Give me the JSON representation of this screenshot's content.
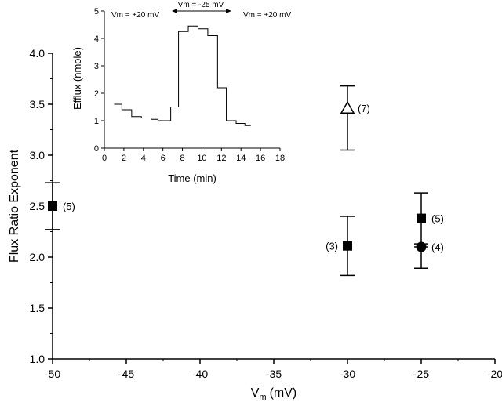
{
  "chart_data": {
    "type": "scatter",
    "xlabel": "V",
    "xlabel_sub": "m",
    "xlabel_unit": "(mV)",
    "ylabel": "Flux Ratio Exponent",
    "xlim": [
      -50,
      -20
    ],
    "ylim": [
      1.0,
      4.0
    ],
    "x_ticks": [
      -50,
      -45,
      -40,
      -35,
      -30,
      -25,
      -20
    ],
    "x_tick_labels": [
      "-50",
      "-45",
      "-40",
      "-35",
      "-30",
      "-25",
      "-20"
    ],
    "y_ticks": [
      1.0,
      1.5,
      2.0,
      2.5,
      3.0,
      3.5,
      4.0
    ],
    "y_tick_labels": [
      "1.0",
      "1.5",
      "2.0",
      "2.5",
      "3.0",
      "3.5",
      "4.0"
    ],
    "points": [
      {
        "x": -50,
        "y": 2.5,
        "err_low": 2.27,
        "err_high": 2.73,
        "marker": "square",
        "n_label": "(5)",
        "label_side": "right"
      },
      {
        "x": -30,
        "y": 2.11,
        "err_low": 1.82,
        "err_high": 2.4,
        "marker": "square",
        "n_label": "(3)",
        "label_side": "left"
      },
      {
        "x": -30,
        "y": 3.46,
        "err_low": 3.05,
        "err_high": 3.68,
        "marker": "open-triangle",
        "n_label": "(7)",
        "label_side": "right"
      },
      {
        "x": -25,
        "y": 2.38,
        "err_low": 2.13,
        "err_high": 2.63,
        "marker": "square",
        "n_label": "(5)",
        "label_side": "right"
      },
      {
        "x": -25,
        "y": 2.1,
        "err_low": 1.89,
        "err_high": 2.1,
        "marker": "circle",
        "n_label": "(4)",
        "label_side": "right"
      }
    ],
    "inset": {
      "type": "line",
      "step": true,
      "xlabel": "Time (min)",
      "ylabel": "Efflux (nmole)",
      "xlim": [
        0,
        18
      ],
      "ylim": [
        0,
        5
      ],
      "x_ticks": [
        0,
        2,
        4,
        6,
        8,
        10,
        12,
        14,
        16,
        18
      ],
      "x_tick_labels": [
        "0",
        "2",
        "4",
        "6",
        "8",
        "10",
        "12",
        "14",
        "16",
        "18"
      ],
      "y_ticks": [
        0,
        1,
        2,
        3,
        4,
        5
      ],
      "y_tick_labels": [
        "0",
        "1",
        "2",
        "3",
        "4",
        "5"
      ],
      "steps": [
        {
          "x0": 1.0,
          "x1": 1.8,
          "y": 1.6
        },
        {
          "x0": 1.8,
          "x1": 2.8,
          "y": 1.4
        },
        {
          "x0": 2.8,
          "x1": 3.8,
          "y": 1.15
        },
        {
          "x0": 3.8,
          "x1": 4.8,
          "y": 1.1
        },
        {
          "x0": 4.8,
          "x1": 5.5,
          "y": 1.05
        },
        {
          "x0": 5.5,
          "x1": 6.8,
          "y": 1.0
        },
        {
          "x0": 6.8,
          "x1": 7.6,
          "y": 1.5
        },
        {
          "x0": 7.6,
          "x1": 8.6,
          "y": 4.25
        },
        {
          "x0": 8.6,
          "x1": 9.6,
          "y": 4.45
        },
        {
          "x0": 9.6,
          "x1": 10.6,
          "y": 4.35
        },
        {
          "x0": 10.6,
          "x1": 11.6,
          "y": 4.1
        },
        {
          "x0": 11.6,
          "x1": 12.5,
          "y": 2.2
        },
        {
          "x0": 12.5,
          "x1": 13.5,
          "y": 1.0
        },
        {
          "x0": 13.5,
          "x1": 14.4,
          "y": 0.9
        },
        {
          "x0": 14.4,
          "x1": 15.0,
          "y": 0.82
        }
      ],
      "annotations": {
        "left": "Vm = +20 mV",
        "middle": "Vm = -25 mV",
        "right": "Vm = +20 mV"
      }
    }
  }
}
